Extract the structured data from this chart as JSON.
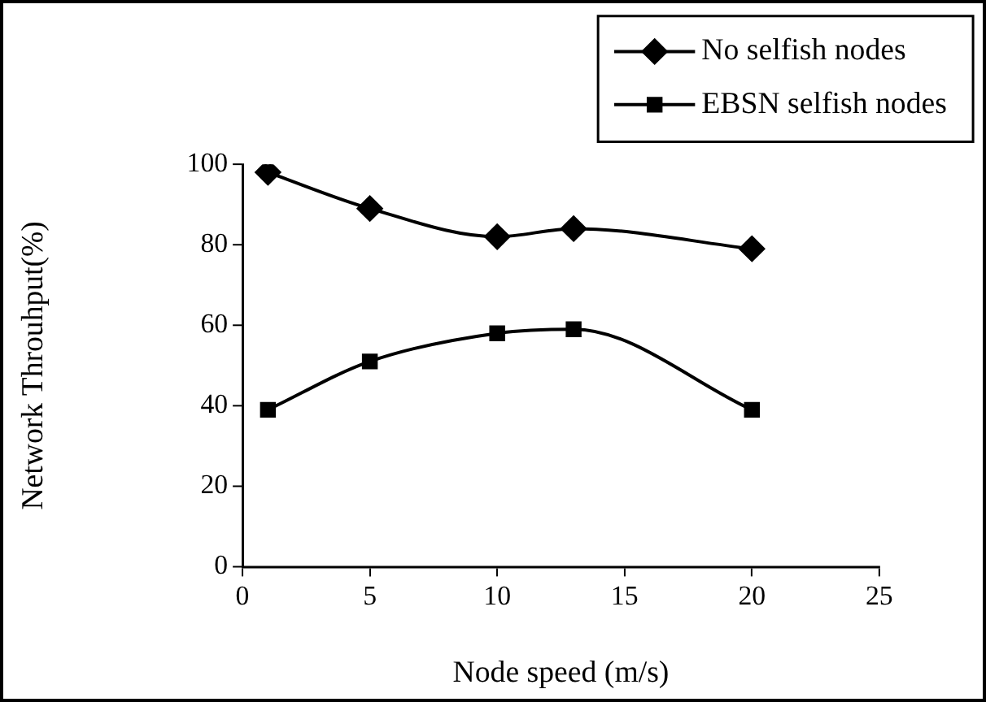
{
  "chart_data": {
    "type": "line",
    "xlabel": "Node speed (m/s)",
    "ylabel": "Network Throuhput(%)",
    "x": [
      1,
      5,
      10,
      13,
      20
    ],
    "series": [
      {
        "name": "No selfish nodes",
        "color": "#000000",
        "marker": "diamond",
        "values": [
          98,
          89,
          82,
          84,
          79
        ]
      },
      {
        "name": "EBSN selfish nodes",
        "color": "#000000",
        "marker": "square",
        "values": [
          39,
          51,
          58,
          59,
          39
        ]
      }
    ],
    "xlim": [
      0,
      25
    ],
    "xticks": [
      0,
      5,
      10,
      15,
      20,
      25
    ],
    "ylim": [
      0,
      100
    ],
    "yticks": [
      0,
      20,
      40,
      60,
      80,
      100
    ],
    "grid": false,
    "legend": "top right",
    "line_style": "solid"
  }
}
